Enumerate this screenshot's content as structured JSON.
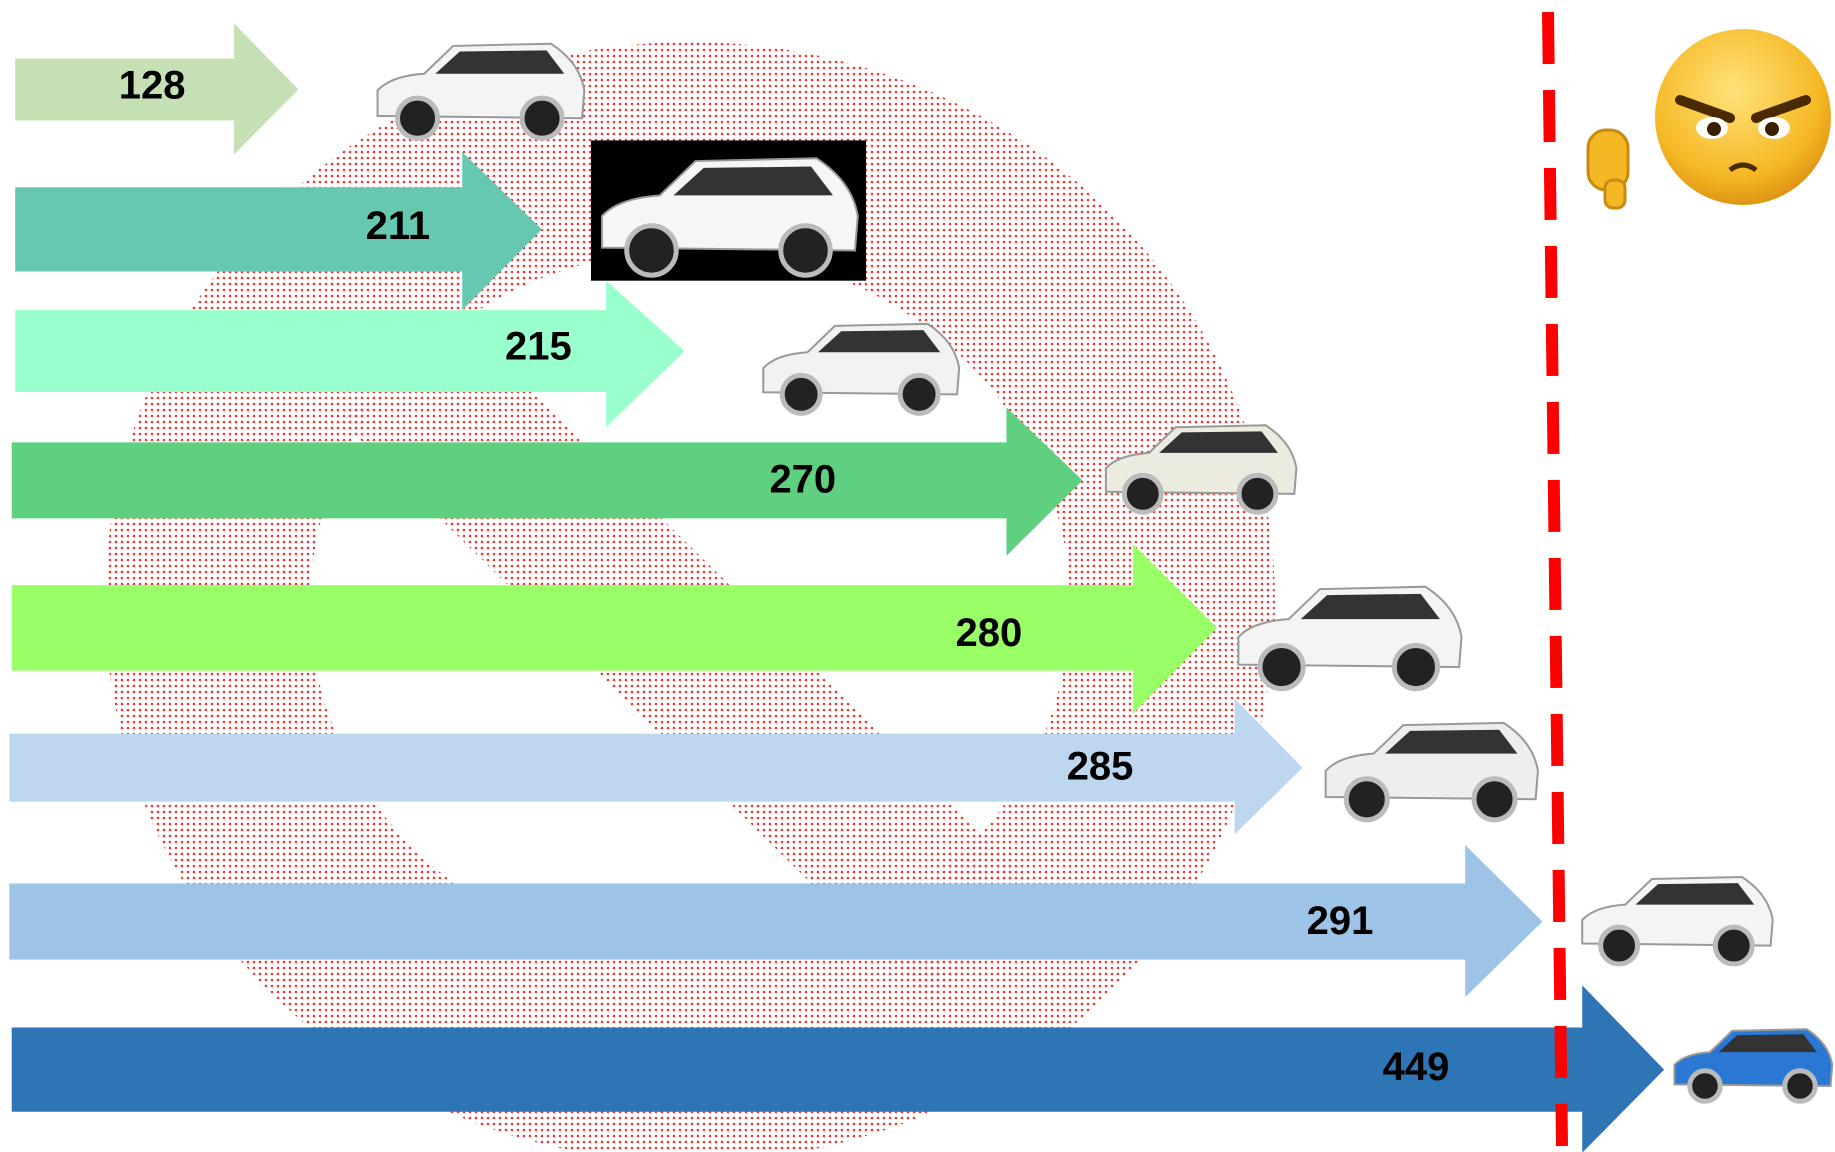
{
  "arrows": [
    {
      "value": 128,
      "color": "#c5e0b4"
    },
    {
      "value": 211,
      "color": "#66c8b0"
    },
    {
      "value": 215,
      "color": "#99ffcc"
    },
    {
      "value": 270,
      "color": "#5fd07f"
    },
    {
      "value": 280,
      "color": "#99ff66"
    },
    {
      "value": 285,
      "color": "#bdd7ee"
    },
    {
      "value": 291,
      "color": "#9dc3e6"
    },
    {
      "value": 449,
      "color": "#2e75b6"
    }
  ]
}
